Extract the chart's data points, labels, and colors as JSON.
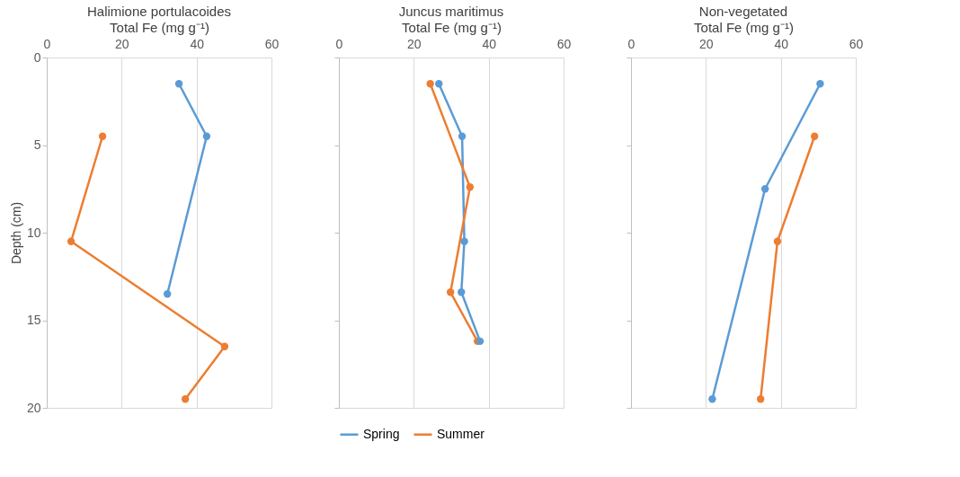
{
  "chart_data": [
    {
      "type": "line",
      "title": "Halimione portulacoides",
      "xlabel": "Total Fe (mg g⁻¹)",
      "ylabel": "Depth (cm)",
      "xlim": [
        0,
        60
      ],
      "xticks": [
        0,
        20,
        40,
        60
      ],
      "ylim": [
        20,
        0
      ],
      "yticks": [
        0,
        5,
        10,
        15,
        20
      ],
      "grid": "x",
      "marker": "circle",
      "legend": false,
      "series": [
        {
          "color": "#5b9bd5",
          "x": [
            35.3,
            42.7,
            32.2
          ],
          "values": [
            1.5,
            4.5,
            13.5
          ]
        },
        {
          "color": "#ed7d31",
          "x": [
            14.9,
            6.5,
            47.5,
            37
          ],
          "values": [
            4.5,
            10.5,
            16.5,
            19.5
          ]
        }
      ]
    },
    {
      "type": "line",
      "title": "Juncus maritimus",
      "xlabel": "Total Fe (mg g⁻¹)",
      "xlim": [
        0,
        60
      ],
      "xticks": [
        0,
        20,
        40,
        60
      ],
      "ylim": [
        20,
        0
      ],
      "yticks": [
        0,
        5,
        10,
        15,
        20
      ],
      "tick_labels": "x",
      "grid": "x",
      "marker": "circle",
      "legend": "bottom",
      "series": [
        {
          "name": "Spring",
          "color": "#5b9bd5",
          "x": [
            26.7,
            32.9,
            33.5,
            32.7,
            37.7
          ],
          "values": [
            1.5,
            4.5,
            10.5,
            13.4,
            16.2
          ]
        },
        {
          "name": "Summer",
          "color": "#ed7d31",
          "x": [
            24.4,
            35,
            29.8,
            37
          ],
          "values": [
            1.5,
            7.4,
            13.4,
            16.2
          ]
        }
      ]
    },
    {
      "type": "line",
      "title": "Non-vegetated",
      "xlabel": "Total Fe (mg g⁻¹)",
      "xlim": [
        0,
        60
      ],
      "xticks": [
        0,
        20,
        40,
        60
      ],
      "ylim": [
        20,
        0
      ],
      "yticks": [
        0,
        5,
        10,
        15,
        20
      ],
      "tick_labels": "x",
      "grid": "x",
      "marker": "circle",
      "legend": false,
      "series": [
        {
          "color": "#5b9bd5",
          "x": [
            50.5,
            35.8,
            21.7
          ],
          "values": [
            1.5,
            7.5,
            19.5
          ]
        },
        {
          "color": "#ed7d31",
          "x": [
            49,
            39.1,
            34.6
          ],
          "values": [
            4.5,
            10.5,
            19.5
          ]
        }
      ]
    }
  ]
}
